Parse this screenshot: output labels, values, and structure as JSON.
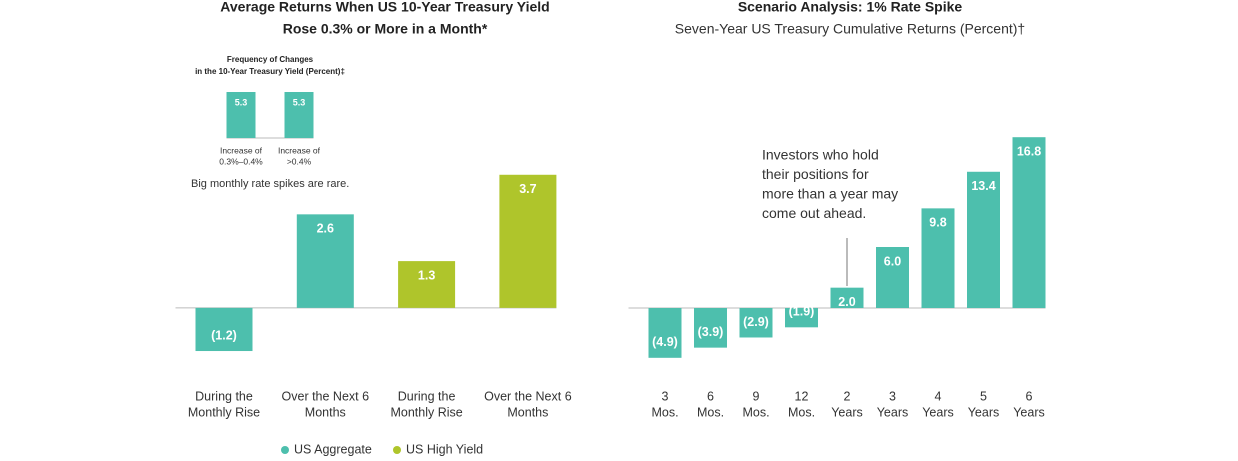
{
  "chart_data": [
    {
      "type": "bar",
      "title": [
        "Average Returns When US 10-Year Treasury Yield",
        "Rose 0.3% or More in a Month*"
      ],
      "note": "Big monthly rate spikes are rare.",
      "categories": [
        [
          "During the",
          "Monthly Rise"
        ],
        [
          "Over the Next 6",
          "Months"
        ],
        [
          "During the",
          "Monthly Rise"
        ],
        [
          "Over the Next 6",
          "Months"
        ]
      ],
      "series": [
        {
          "name": "US Aggregate",
          "color": "#4dbfad",
          "values": [
            -1.2,
            2.6,
            null,
            null
          ],
          "value_labels": [
            "(1.2)",
            "2.6",
            null,
            null
          ]
        },
        {
          "name": "US High Yield",
          "color": "#afc52b",
          "values": [
            null,
            null,
            1.3,
            3.7
          ],
          "value_labels": [
            null,
            null,
            "1.3",
            "3.7"
          ]
        }
      ],
      "ylim": [
        -2.2,
        4.5
      ]
    },
    {
      "type": "bar",
      "title": [
        "Frequency of Changes",
        "in the 10-Year Treasury Yield (Percent)‡"
      ],
      "categories": [
        [
          "Increase of",
          "0.3%–0.4%"
        ],
        [
          "Increase of",
          ">0.4%"
        ]
      ],
      "values": [
        5.3,
        5.3
      ],
      "color": "#4dbfad",
      "ylim": [
        0,
        5.3
      ]
    },
    {
      "type": "bar",
      "title": [
        "Scenario Analysis: 1% Rate Spike"
      ],
      "subtitle": "Seven-Year US Treasury Cumulative Returns (Percent)†",
      "annotation": [
        "Investors who hold",
        "their positions for",
        "more than a year may",
        "come out ahead."
      ],
      "categories": [
        [
          "3",
          "Mos."
        ],
        [
          "6",
          "Mos."
        ],
        [
          "9",
          "Mos."
        ],
        [
          "12",
          "Mos."
        ],
        [
          "2",
          "Years"
        ],
        [
          "3",
          "Years"
        ],
        [
          "4",
          "Years"
        ],
        [
          "5",
          "Years"
        ],
        [
          "6",
          "Years"
        ]
      ],
      "values": [
        -4.9,
        -3.9,
        -2.9,
        -1.9,
        2.0,
        6.0,
        9.8,
        13.4,
        16.8
      ],
      "value_labels": [
        "(4.9)",
        "(3.9)",
        "(2.9)",
        "(1.9)",
        "2.0",
        "6.0",
        "9.8",
        "13.4",
        "16.8"
      ],
      "color": "#4dbfad",
      "ylim": [
        -6,
        18
      ]
    }
  ]
}
